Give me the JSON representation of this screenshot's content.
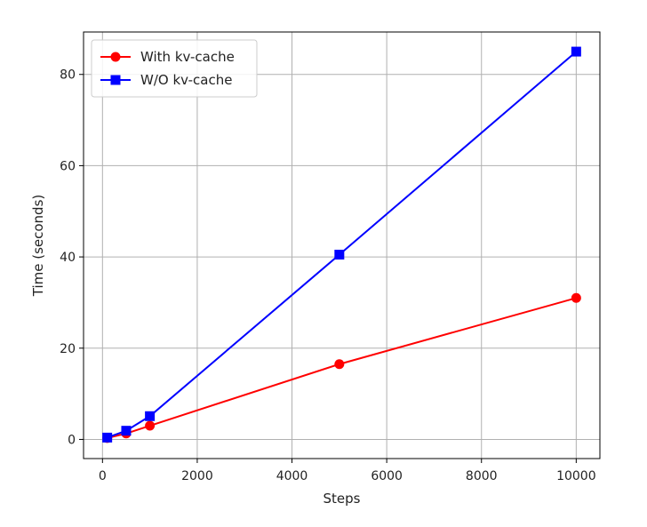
{
  "chart_data": {
    "type": "line",
    "title": "",
    "xlabel": "Steps",
    "ylabel": "Time (seconds)",
    "xlim": [
      -400,
      10500
    ],
    "ylim": [
      -4.2,
      89.3
    ],
    "xticks": [
      0,
      2000,
      4000,
      6000,
      8000,
      10000
    ],
    "xtick_labels": [
      "0",
      "2000",
      "4000",
      "6000",
      "8000",
      "10000"
    ],
    "yticks": [
      0,
      20,
      40,
      60,
      80
    ],
    "ytick_labels": [
      "0",
      "20",
      "40",
      "60",
      "80"
    ],
    "grid": true,
    "legend": "top-left",
    "series": [
      {
        "name": "With kv-cache",
        "color": "#ff0000",
        "marker": "circle",
        "x": [
          100,
          500,
          1000,
          5000,
          10000
        ],
        "y": [
          0.3,
          1.3,
          3.0,
          16.5,
          31.0
        ]
      },
      {
        "name": "W/O kv-cache",
        "color": "#0000ff",
        "marker": "square",
        "x": [
          100,
          500,
          1000,
          5000,
          10000
        ],
        "y": [
          0.4,
          1.9,
          5.1,
          40.5,
          85.0
        ]
      }
    ]
  }
}
